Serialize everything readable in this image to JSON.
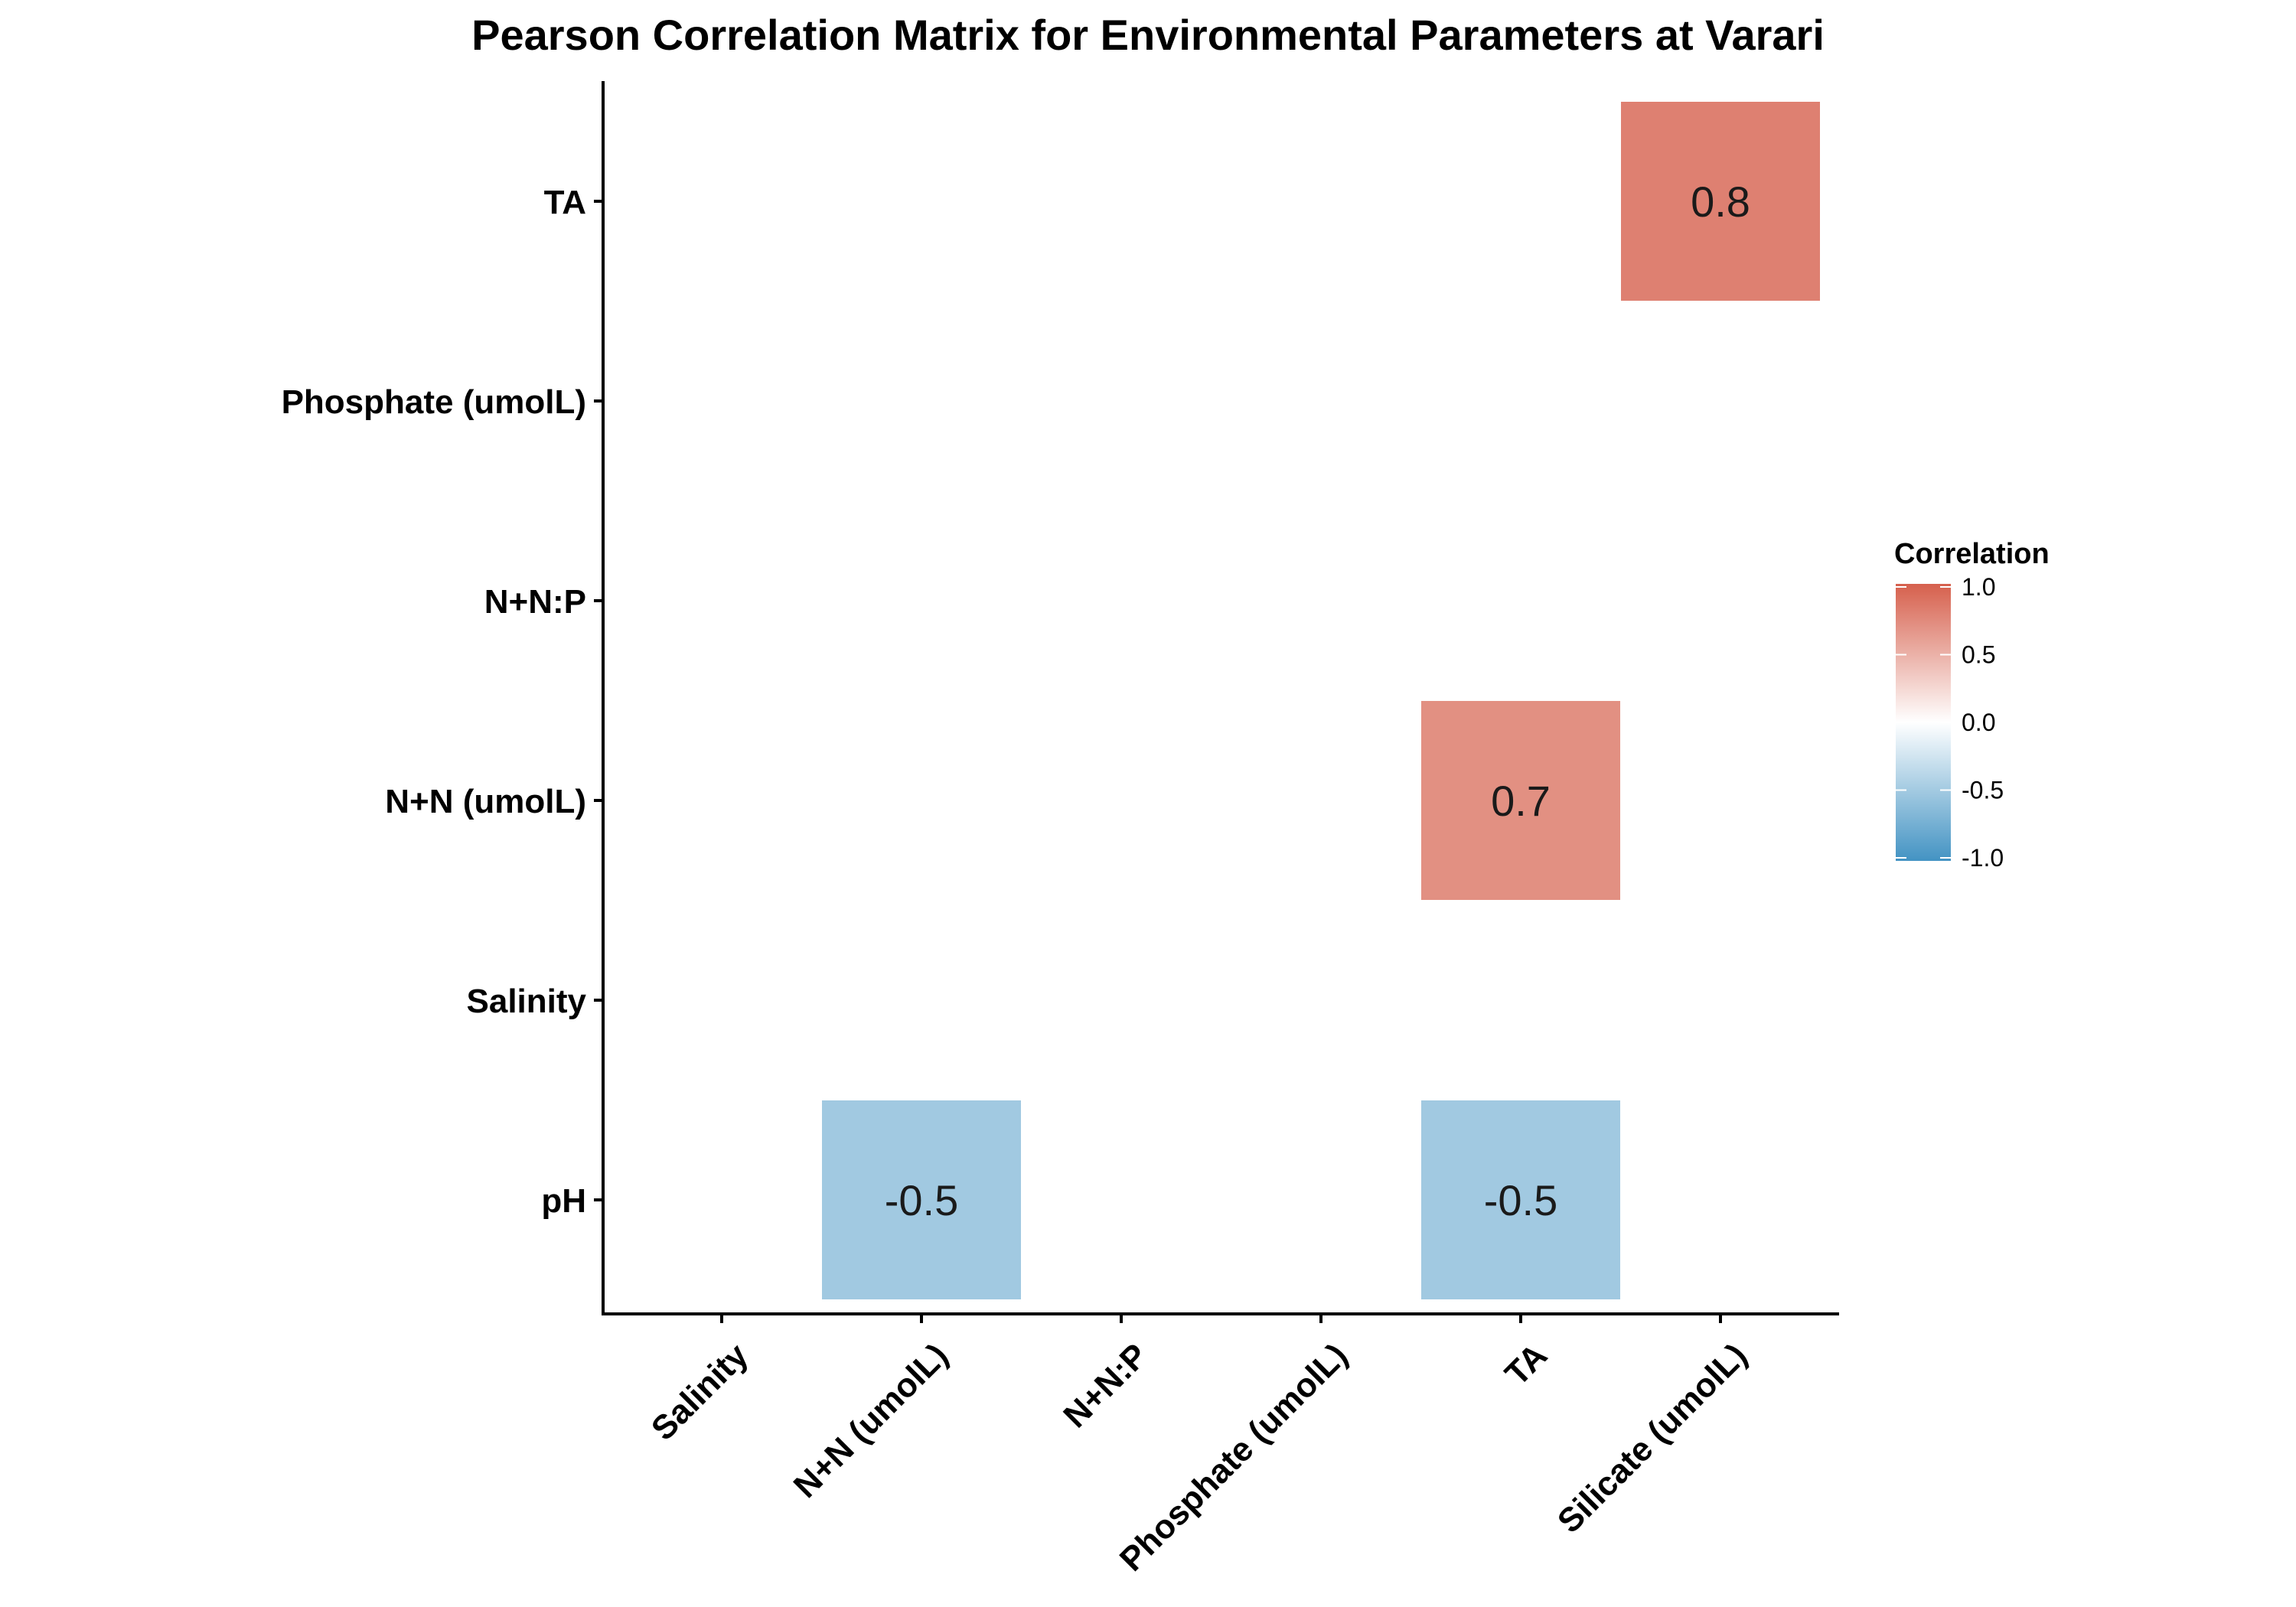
{
  "chart_data": {
    "type": "heatmap",
    "title": "Pearson Correlation Matrix for Environmental Parameters at Varari",
    "xlabel": "",
    "ylabel": "",
    "x_categories": [
      "Salinity",
      "N+N (umolL)",
      "N+N:P",
      "Phosphate (umolL)",
      "TA",
      "Silicate (umolL)"
    ],
    "y_categories": [
      "pH",
      "Salinity",
      "N+N (umolL)",
      "N+N:P",
      "Phosphate (umolL)",
      "TA"
    ],
    "cells": [
      {
        "x": "N+N (umolL)",
        "y": "pH",
        "value": -0.5,
        "label": "-0.5"
      },
      {
        "x": "TA",
        "y": "pH",
        "value": -0.5,
        "label": "-0.5"
      },
      {
        "x": "TA",
        "y": "N+N (umolL)",
        "value": 0.7,
        "label": "0.7"
      },
      {
        "x": "Silicate (umolL)",
        "y": "TA",
        "value": 0.8,
        "label": "0.8"
      }
    ],
    "legend": {
      "title": "Correlation",
      "range": [
        -1,
        1
      ],
      "ticks": [
        "1.0",
        "0.5",
        "0.0",
        "-0.5",
        "-1.0"
      ],
      "tick_values": [
        1.0,
        0.5,
        0.0,
        -0.5,
        -1.0
      ],
      "position": "right"
    },
    "colors": {
      "high": "#d6604d",
      "mid": "#ffffff",
      "low": "#4393c3"
    }
  }
}
